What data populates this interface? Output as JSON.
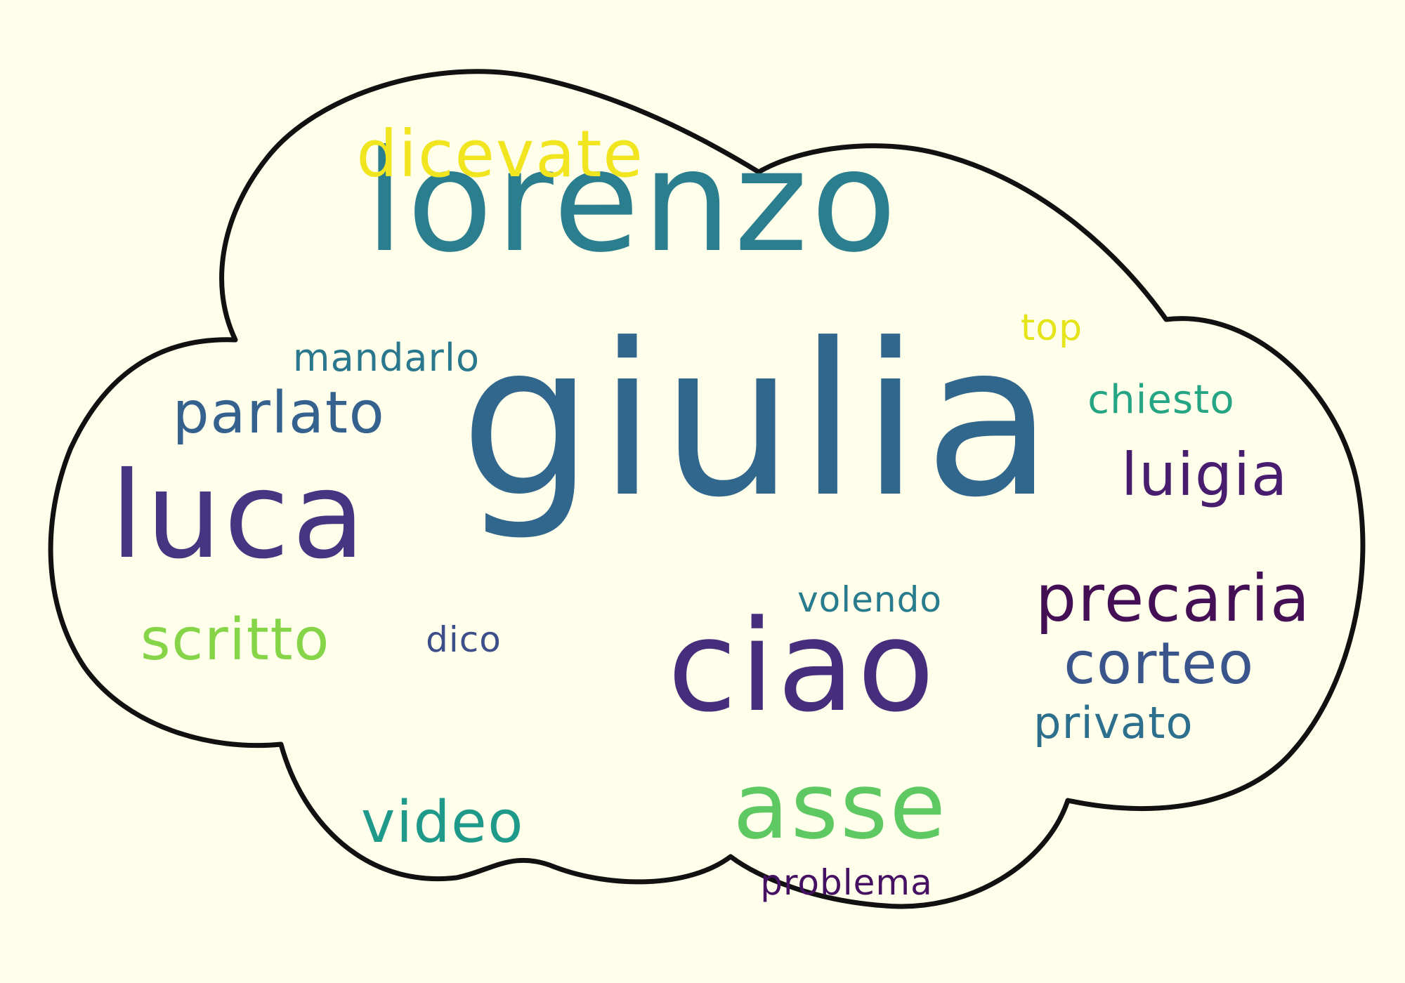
{
  "words": [
    {
      "text": "giulia",
      "color": "#31668d"
    },
    {
      "text": "lorenzo",
      "color": "#2a7e8e"
    },
    {
      "text": "ciao",
      "color": "#472e7c"
    },
    {
      "text": "luca",
      "color": "#463581"
    },
    {
      "text": "asse",
      "color": "#5ec962"
    },
    {
      "text": "precaria",
      "color": "#440f54"
    },
    {
      "text": "dicevate",
      "color": "#f0e51e"
    },
    {
      "text": "parlato",
      "color": "#34618d"
    },
    {
      "text": "scritto",
      "color": "#86d549"
    },
    {
      "text": "corteo",
      "color": "#3a558c"
    },
    {
      "text": "luigia",
      "color": "#481c6e"
    },
    {
      "text": "video",
      "color": "#1f9a8a"
    },
    {
      "text": "privato",
      "color": "#2d708e"
    },
    {
      "text": "chiesto",
      "color": "#25a584"
    },
    {
      "text": "mandarlo",
      "color": "#2a788e"
    },
    {
      "text": "volendo",
      "color": "#287c8e"
    },
    {
      "text": "top",
      "color": "#e4e419"
    },
    {
      "text": "dico",
      "color": "#3c4f8a"
    },
    {
      "text": "problema",
      "color": "#471163"
    }
  ]
}
